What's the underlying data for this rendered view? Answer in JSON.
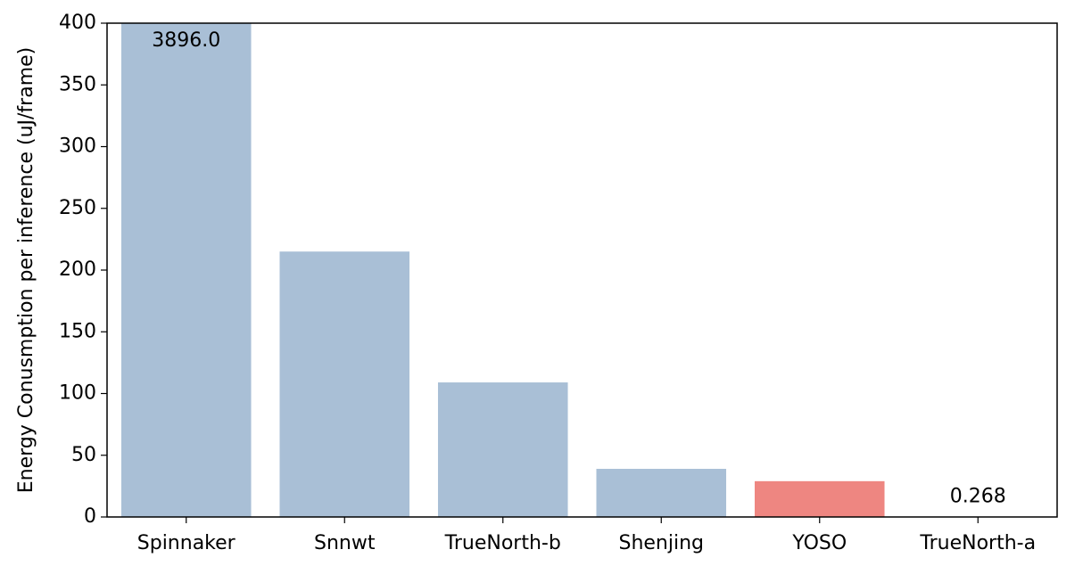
{
  "chart_data": {
    "type": "bar",
    "ylabel": "Energy Conusmption per inference (uJ/frame)",
    "categories": [
      "Spinnaker",
      "Snnwt",
      "TrueNorth-b",
      "Shenjing",
      "YOSO",
      "TrueNorth-a"
    ],
    "values": [
      3896.0,
      215,
      109,
      39,
      29,
      0.268
    ],
    "value_labels": [
      "3896.0",
      null,
      null,
      null,
      null,
      "0.268"
    ],
    "colors": [
      "#a9bfd6",
      "#a9bfd6",
      "#a9bfd6",
      "#a9bfd6",
      "#ee8681",
      "#a9bfd6"
    ],
    "ylim": [
      0,
      400
    ],
    "yticks": [
      0,
      50,
      100,
      150,
      200,
      250,
      300,
      350,
      400
    ],
    "grid": false
  }
}
